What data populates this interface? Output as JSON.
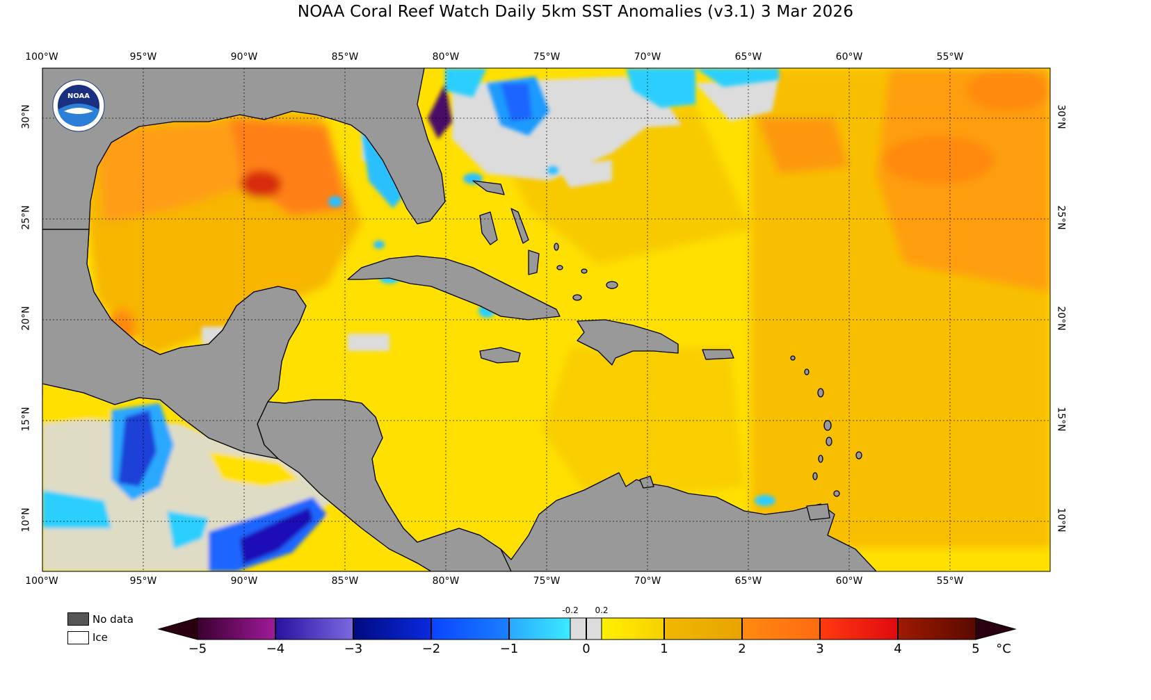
{
  "title": "NOAA Coral Reef Watch Daily 5km SST Anomalies  (v3.1)   3 Mar 2026",
  "logo": {
    "name": "noaa-logo",
    "text": "NOAA",
    "ring_text": "NATIONAL OCEANIC AND ATMOSPHERIC ADMINISTRATION · U.S. DEPARTMENT OF COMMERCE"
  },
  "longitude_labels": [
    "100°W",
    "95°W",
    "90°W",
    "85°W",
    "80°W",
    "75°W",
    "70°W",
    "65°W",
    "60°W",
    "55°W"
  ],
  "latitude_labels": [
    "30°N",
    "25°N",
    "20°N",
    "15°N",
    "10°N"
  ],
  "legend": {
    "no_data": "No data",
    "ice": "Ice",
    "no_data_color": "#555555",
    "ice_color": "#ffffff"
  },
  "colorbar": {
    "ticks": [
      "−5",
      "−4",
      "−3",
      "−2",
      "−1",
      "0",
      "1",
      "2",
      "3",
      "4",
      "5"
    ],
    "small_ticks": [
      "-0.2",
      "0.2"
    ],
    "unit": "°C"
  },
  "colors": {
    "land": "#999999",
    "near_zero": "#dcdcdc",
    "positive_low": "#ffee00",
    "positive_mid": "#f5c400",
    "positive_high": "#ff8a10",
    "warm_hotspot": "#e03010",
    "negative_light": "#29cfff",
    "negative_mid": "#1a66ff",
    "negative_deep": "#1a10b8",
    "purple": "#4a0a68"
  }
}
